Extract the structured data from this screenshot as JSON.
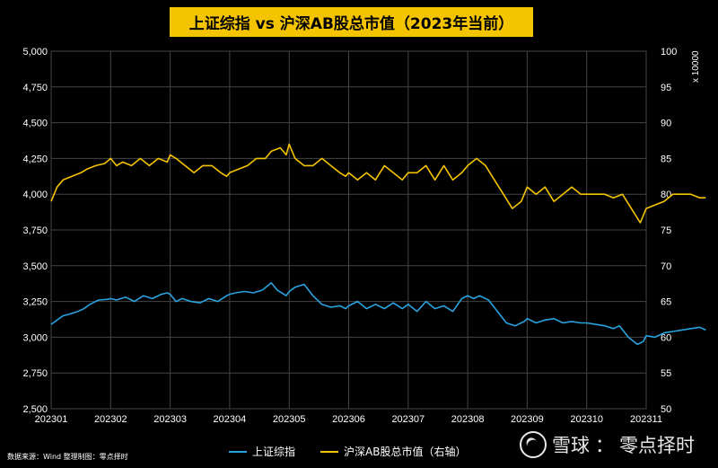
{
  "title": "上证综指 vs 沪深AB股总市值（2023年当前）",
  "right_axis_unit": "x 10000",
  "source_text": "数据来源：Wind    整理制图：零点择时",
  "watermark": {
    "platform": "雪球",
    "separator": "：",
    "author": "零点择时",
    "icon": "snowball-logo-icon"
  },
  "colors": {
    "background": "#000000",
    "title_bg": "#f5c400",
    "sse": "#29a3e0",
    "mktcap": "#f5c400",
    "grid": "#444444"
  },
  "chart_data": {
    "type": "line",
    "title": "上证综指 vs 沪深AB股总市值（2023年当前）",
    "xlabel": "",
    "grid": true,
    "legend_position": "bottom",
    "x_ticks": [
      "202301",
      "202302",
      "202303",
      "202304",
      "202305",
      "202306",
      "202307",
      "202308",
      "202309",
      "202310",
      "202311"
    ],
    "y_left": {
      "range": [
        2500,
        5000
      ],
      "ticks": [
        "2,500",
        "2,750",
        "3,000",
        "3,250",
        "3,500",
        "3,750",
        "4,000",
        "4,250",
        "4,500",
        "4,750",
        "5,000"
      ]
    },
    "y_right": {
      "range": [
        50,
        100
      ],
      "unit": "x 10000",
      "ticks": [
        "50",
        "55",
        "60",
        "65",
        "70",
        "75",
        "80",
        "85",
        "90",
        "95",
        "100"
      ]
    },
    "series": [
      {
        "name": "上证综指",
        "axis": "left",
        "color": "#29a3e0",
        "x": [
          0.0,
          0.1,
          0.2,
          0.3,
          0.45,
          0.55,
          0.65,
          0.8,
          0.95,
          1.0,
          1.1,
          1.25,
          1.4,
          1.55,
          1.7,
          1.85,
          1.95,
          2.0,
          2.1,
          2.2,
          2.35,
          2.5,
          2.65,
          2.8,
          2.95,
          3.0,
          3.1,
          3.25,
          3.4,
          3.55,
          3.7,
          3.8,
          3.95,
          4.0,
          4.1,
          4.25,
          4.4,
          4.55,
          4.7,
          4.85,
          4.95,
          5.0,
          5.15,
          5.3,
          5.45,
          5.6,
          5.75,
          5.9,
          6.0,
          6.15,
          6.3,
          6.45,
          6.6,
          6.75,
          6.9,
          7.0,
          7.1,
          7.2,
          7.35,
          7.5,
          7.65,
          7.8,
          7.95,
          8.0,
          8.15,
          8.3,
          8.45,
          8.6,
          8.75,
          8.9,
          9.0,
          9.15,
          9.3,
          9.45,
          9.55,
          9.7,
          9.85,
          9.95,
          10.0,
          10.15,
          10.3,
          10.45,
          10.6,
          10.75,
          10.9,
          11.0
        ],
        "values": [
          3090,
          3120,
          3150,
          3160,
          3180,
          3200,
          3230,
          3260,
          3265,
          3270,
          3260,
          3280,
          3250,
          3290,
          3270,
          3300,
          3310,
          3300,
          3250,
          3270,
          3250,
          3240,
          3270,
          3250,
          3290,
          3300,
          3310,
          3320,
          3310,
          3330,
          3380,
          3330,
          3290,
          3320,
          3350,
          3370,
          3290,
          3230,
          3210,
          3220,
          3200,
          3220,
          3250,
          3200,
          3230,
          3200,
          3240,
          3200,
          3230,
          3180,
          3250,
          3200,
          3220,
          3180,
          3270,
          3290,
          3270,
          3290,
          3260,
          3180,
          3100,
          3080,
          3110,
          3130,
          3100,
          3120,
          3130,
          3100,
          3110,
          3100,
          3100,
          3090,
          3080,
          3060,
          3080,
          3000,
          2950,
          2970,
          3010,
          3000,
          3030,
          3040,
          3050,
          3060,
          3070,
          3050
        ]
      },
      {
        "name": "沪深AB股总市值（右轴）",
        "axis": "right",
        "color": "#f5c400",
        "x": [
          0.0,
          0.1,
          0.2,
          0.35,
          0.5,
          0.6,
          0.75,
          0.9,
          1.0,
          1.1,
          1.2,
          1.35,
          1.5,
          1.65,
          1.8,
          1.95,
          2.0,
          2.1,
          2.25,
          2.4,
          2.55,
          2.7,
          2.85,
          2.95,
          3.0,
          3.15,
          3.3,
          3.45,
          3.6,
          3.7,
          3.85,
          3.95,
          4.0,
          4.1,
          4.25,
          4.4,
          4.55,
          4.7,
          4.85,
          4.95,
          5.0,
          5.15,
          5.3,
          5.45,
          5.6,
          5.75,
          5.9,
          6.0,
          6.15,
          6.3,
          6.45,
          6.6,
          6.75,
          6.9,
          7.0,
          7.15,
          7.3,
          7.45,
          7.6,
          7.75,
          7.9,
          8.0,
          8.15,
          8.3,
          8.45,
          8.6,
          8.75,
          8.9,
          9.0,
          9.15,
          9.3,
          9.45,
          9.6,
          9.75,
          9.9,
          10.0,
          10.15,
          10.3,
          10.45,
          10.6,
          10.75,
          10.9,
          11.0
        ],
        "values": [
          79,
          81,
          82,
          82.5,
          83,
          83.5,
          84,
          84.3,
          85,
          84,
          84.5,
          84,
          85,
          84,
          85,
          84.5,
          85.5,
          85,
          84,
          83,
          84,
          84,
          83,
          82.5,
          83,
          83.5,
          84,
          85,
          85,
          86,
          86.5,
          85.5,
          87,
          85,
          84,
          84,
          85,
          84,
          83,
          82.5,
          83,
          82,
          83,
          82,
          84,
          83,
          82,
          83,
          83,
          84,
          82,
          84,
          82,
          83,
          84,
          85,
          84,
          82,
          80,
          78,
          79,
          81,
          80,
          81,
          79,
          80,
          81,
          80,
          80,
          80,
          80,
          79.5,
          80,
          78,
          76,
          78,
          78.5,
          79,
          80,
          80,
          80,
          79.5,
          79.5
        ]
      }
    ]
  }
}
